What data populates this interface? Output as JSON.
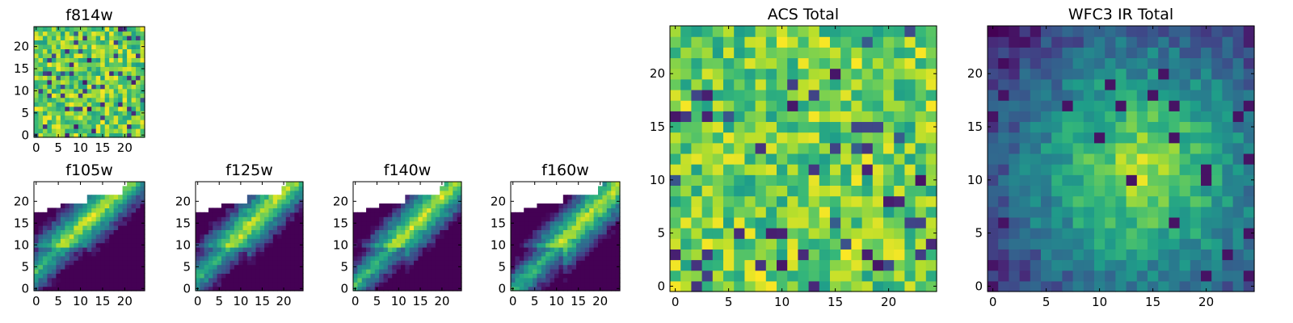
{
  "figure": {
    "description_colormap": "viridis"
  },
  "chart_data": [
    {
      "type": "heatmap",
      "title": "f814w",
      "grid": [
        25,
        25
      ],
      "pattern": "noise",
      "masked_region": "none",
      "xticks": [
        0,
        5,
        10,
        15,
        20
      ],
      "yticks": [
        0,
        5,
        10,
        15,
        20
      ],
      "xlim": [
        -0.5,
        24.5
      ],
      "ylim": [
        -0.5,
        24.5
      ],
      "colormap": "viridis"
    },
    {
      "type": "heatmap",
      "title": "f105w",
      "grid": [
        25,
        25
      ],
      "pattern": "diagonal-band",
      "masked_region": "upper-left",
      "xticks": [
        0,
        5,
        10,
        15,
        20
      ],
      "yticks": [
        0,
        5,
        10,
        15,
        20
      ],
      "xlim": [
        -0.5,
        24.5
      ],
      "ylim": [
        -0.5,
        24.5
      ],
      "colormap": "viridis"
    },
    {
      "type": "heatmap",
      "title": "f125w",
      "grid": [
        25,
        25
      ],
      "pattern": "diagonal-band",
      "masked_region": "upper-left",
      "xticks": [
        0,
        5,
        10,
        15,
        20
      ],
      "yticks": [
        0,
        5,
        10,
        15,
        20
      ],
      "xlim": [
        -0.5,
        24.5
      ],
      "ylim": [
        -0.5,
        24.5
      ],
      "colormap": "viridis"
    },
    {
      "type": "heatmap",
      "title": "f140w",
      "grid": [
        25,
        25
      ],
      "pattern": "diagonal-band",
      "masked_region": "upper-left",
      "xticks": [
        0,
        5,
        10,
        15,
        20
      ],
      "yticks": [
        0,
        5,
        10,
        15,
        20
      ],
      "xlim": [
        -0.5,
        24.5
      ],
      "ylim": [
        -0.5,
        24.5
      ],
      "colormap": "viridis"
    },
    {
      "type": "heatmap",
      "title": "f160w",
      "grid": [
        25,
        25
      ],
      "pattern": "diagonal-band",
      "masked_region": "upper-left",
      "xticks": [
        0,
        5,
        10,
        15,
        20
      ],
      "yticks": [
        0,
        5,
        10,
        15,
        20
      ],
      "xlim": [
        -0.5,
        24.5
      ],
      "ylim": [
        -0.5,
        24.5
      ],
      "colormap": "viridis"
    },
    {
      "type": "heatmap",
      "title": "ACS Total",
      "grid": [
        25,
        25
      ],
      "pattern": "noise",
      "masked_region": "none",
      "xticks": [
        0,
        5,
        10,
        15,
        20
      ],
      "yticks": [
        0,
        5,
        10,
        15,
        20
      ],
      "xlim": [
        -0.5,
        24.5
      ],
      "ylim": [
        -0.5,
        24.5
      ],
      "colormap": "viridis"
    },
    {
      "type": "heatmap",
      "title": "WFC3 IR Total",
      "grid": [
        25,
        25
      ],
      "pattern": "central-blob",
      "masked_region": "none",
      "xticks": [
        0,
        5,
        10,
        15,
        20
      ],
      "yticks": [
        0,
        5,
        10,
        15,
        20
      ],
      "xlim": [
        -0.5,
        24.5
      ],
      "ylim": [
        -0.5,
        24.5
      ],
      "colormap": "viridis"
    }
  ]
}
